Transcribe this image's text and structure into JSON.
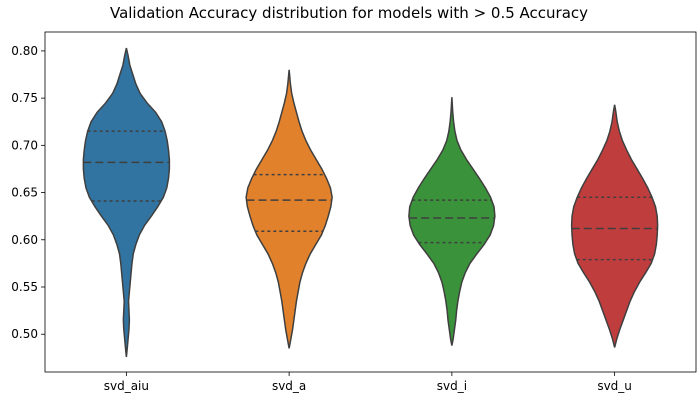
{
  "chart_data": {
    "type": "violin",
    "title": "Validation Accuracy distribution for models with > 0.5 Accuracy",
    "xlabel": "",
    "ylabel": "",
    "ylim": [
      0.46,
      0.82
    ],
    "yticks": [
      "0.50",
      "0.55",
      "0.60",
      "0.65",
      "0.70",
      "0.75",
      "0.80"
    ],
    "grid": false,
    "categories": [
      "svd_aiu",
      "svd_a",
      "svd_i",
      "svd_u"
    ],
    "colors": [
      "#3274a1",
      "#e1812c",
      "#3a923a",
      "#c03d3e"
    ],
    "violins": [
      {
        "category": "svd_aiu",
        "min": 0.476,
        "max": 0.803,
        "q1": 0.641,
        "median": 0.682,
        "q3": 0.715,
        "profile": [
          [
            0.476,
            0.0
          ],
          [
            0.485,
            0.02
          ],
          [
            0.495,
            0.04
          ],
          [
            0.505,
            0.06
          ],
          [
            0.515,
            0.07
          ],
          [
            0.525,
            0.06
          ],
          [
            0.535,
            0.05
          ],
          [
            0.545,
            0.07
          ],
          [
            0.555,
            0.09
          ],
          [
            0.565,
            0.11
          ],
          [
            0.575,
            0.13
          ],
          [
            0.585,
            0.16
          ],
          [
            0.595,
            0.22
          ],
          [
            0.605,
            0.3
          ],
          [
            0.615,
            0.42
          ],
          [
            0.625,
            0.58
          ],
          [
            0.635,
            0.73
          ],
          [
            0.645,
            0.86
          ],
          [
            0.655,
            0.94
          ],
          [
            0.665,
            0.98
          ],
          [
            0.675,
            1.0
          ],
          [
            0.685,
            1.0
          ],
          [
            0.695,
            0.98
          ],
          [
            0.705,
            0.95
          ],
          [
            0.715,
            0.9
          ],
          [
            0.725,
            0.82
          ],
          [
            0.735,
            0.68
          ],
          [
            0.745,
            0.48
          ],
          [
            0.755,
            0.32
          ],
          [
            0.765,
            0.22
          ],
          [
            0.775,
            0.15
          ],
          [
            0.785,
            0.08
          ],
          [
            0.795,
            0.04
          ],
          [
            0.803,
            0.0
          ]
        ]
      },
      {
        "category": "svd_a",
        "min": 0.485,
        "max": 0.78,
        "q1": 0.609,
        "median": 0.642,
        "q3": 0.669,
        "profile": [
          [
            0.485,
            0.0
          ],
          [
            0.495,
            0.04
          ],
          [
            0.505,
            0.08
          ],
          [
            0.515,
            0.11
          ],
          [
            0.525,
            0.14
          ],
          [
            0.535,
            0.17
          ],
          [
            0.545,
            0.21
          ],
          [
            0.555,
            0.25
          ],
          [
            0.565,
            0.31
          ],
          [
            0.575,
            0.39
          ],
          [
            0.585,
            0.49
          ],
          [
            0.595,
            0.62
          ],
          [
            0.605,
            0.75
          ],
          [
            0.615,
            0.84
          ],
          [
            0.625,
            0.91
          ],
          [
            0.635,
            0.97
          ],
          [
            0.645,
            1.0
          ],
          [
            0.655,
            0.96
          ],
          [
            0.665,
            0.87
          ],
          [
            0.675,
            0.76
          ],
          [
            0.685,
            0.63
          ],
          [
            0.695,
            0.5
          ],
          [
            0.705,
            0.39
          ],
          [
            0.715,
            0.3
          ],
          [
            0.725,
            0.23
          ],
          [
            0.735,
            0.17
          ],
          [
            0.745,
            0.11
          ],
          [
            0.755,
            0.06
          ],
          [
            0.765,
            0.03
          ],
          [
            0.78,
            0.0
          ]
        ]
      },
      {
        "category": "svd_i",
        "min": 0.488,
        "max": 0.751,
        "q1": 0.597,
        "median": 0.623,
        "q3": 0.642,
        "profile": [
          [
            0.488,
            0.0
          ],
          [
            0.495,
            0.03
          ],
          [
            0.505,
            0.06
          ],
          [
            0.515,
            0.09
          ],
          [
            0.525,
            0.11
          ],
          [
            0.535,
            0.14
          ],
          [
            0.545,
            0.18
          ],
          [
            0.555,
            0.23
          ],
          [
            0.565,
            0.31
          ],
          [
            0.575,
            0.42
          ],
          [
            0.585,
            0.58
          ],
          [
            0.595,
            0.75
          ],
          [
            0.605,
            0.89
          ],
          [
            0.615,
            0.97
          ],
          [
            0.625,
            1.0
          ],
          [
            0.635,
            0.98
          ],
          [
            0.645,
            0.9
          ],
          [
            0.655,
            0.78
          ],
          [
            0.665,
            0.64
          ],
          [
            0.675,
            0.49
          ],
          [
            0.685,
            0.34
          ],
          [
            0.695,
            0.21
          ],
          [
            0.705,
            0.12
          ],
          [
            0.715,
            0.07
          ],
          [
            0.725,
            0.04
          ],
          [
            0.735,
            0.02
          ],
          [
            0.751,
            0.0
          ]
        ]
      },
      {
        "category": "svd_u",
        "min": 0.486,
        "max": 0.743,
        "q1": 0.579,
        "median": 0.612,
        "q3": 0.645,
        "profile": [
          [
            0.486,
            0.0
          ],
          [
            0.495,
            0.05
          ],
          [
            0.505,
            0.12
          ],
          [
            0.515,
            0.2
          ],
          [
            0.525,
            0.28
          ],
          [
            0.535,
            0.36
          ],
          [
            0.545,
            0.46
          ],
          [
            0.555,
            0.58
          ],
          [
            0.565,
            0.72
          ],
          [
            0.575,
            0.85
          ],
          [
            0.585,
            0.93
          ],
          [
            0.595,
            0.97
          ],
          [
            0.605,
            0.99
          ],
          [
            0.615,
            1.0
          ],
          [
            0.625,
            0.99
          ],
          [
            0.635,
            0.95
          ],
          [
            0.645,
            0.87
          ],
          [
            0.655,
            0.77
          ],
          [
            0.665,
            0.65
          ],
          [
            0.675,
            0.52
          ],
          [
            0.685,
            0.39
          ],
          [
            0.695,
            0.28
          ],
          [
            0.705,
            0.18
          ],
          [
            0.715,
            0.11
          ],
          [
            0.725,
            0.06
          ],
          [
            0.735,
            0.03
          ],
          [
            0.743,
            0.0
          ]
        ]
      }
    ]
  }
}
